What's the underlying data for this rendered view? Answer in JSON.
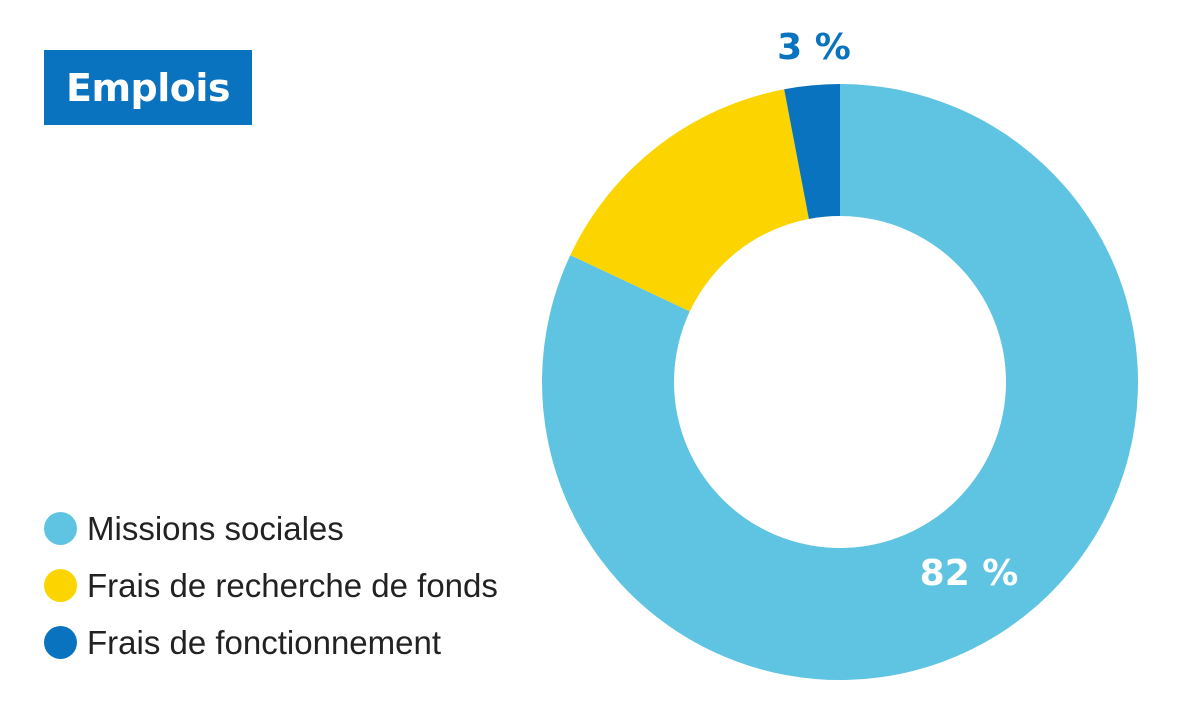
{
  "title": "Emplois",
  "colors": {
    "title_bg": "#0a73bf",
    "missions": "#5ec4e2",
    "recherche": "#fcd400",
    "fonctionnement": "#0a73bf"
  },
  "legend": {
    "items": [
      {
        "label": "Missions sociales",
        "color": "#5ec4e2"
      },
      {
        "label": "Frais de recherche de fonds",
        "color": "#fcd400"
      },
      {
        "label": "Frais de fonctionnement",
        "color": "#0a73bf"
      }
    ]
  },
  "chart_data": {
    "type": "pie",
    "variant": "donut",
    "title": "Emplois",
    "categories": [
      "Missions sociales",
      "Frais de recherche de fonds",
      "Frais de fonctionnement"
    ],
    "values": [
      82,
      15,
      3
    ],
    "unit": "%",
    "data_labels": [
      {
        "category": "Missions sociales",
        "text": "82 %",
        "color": "#ffffff"
      },
      {
        "category": "Frais de fonctionnement",
        "text": "3 %",
        "color": "#0a73bf"
      }
    ],
    "legend_position": "bottom-left",
    "start": "top",
    "direction": "clockwise"
  }
}
